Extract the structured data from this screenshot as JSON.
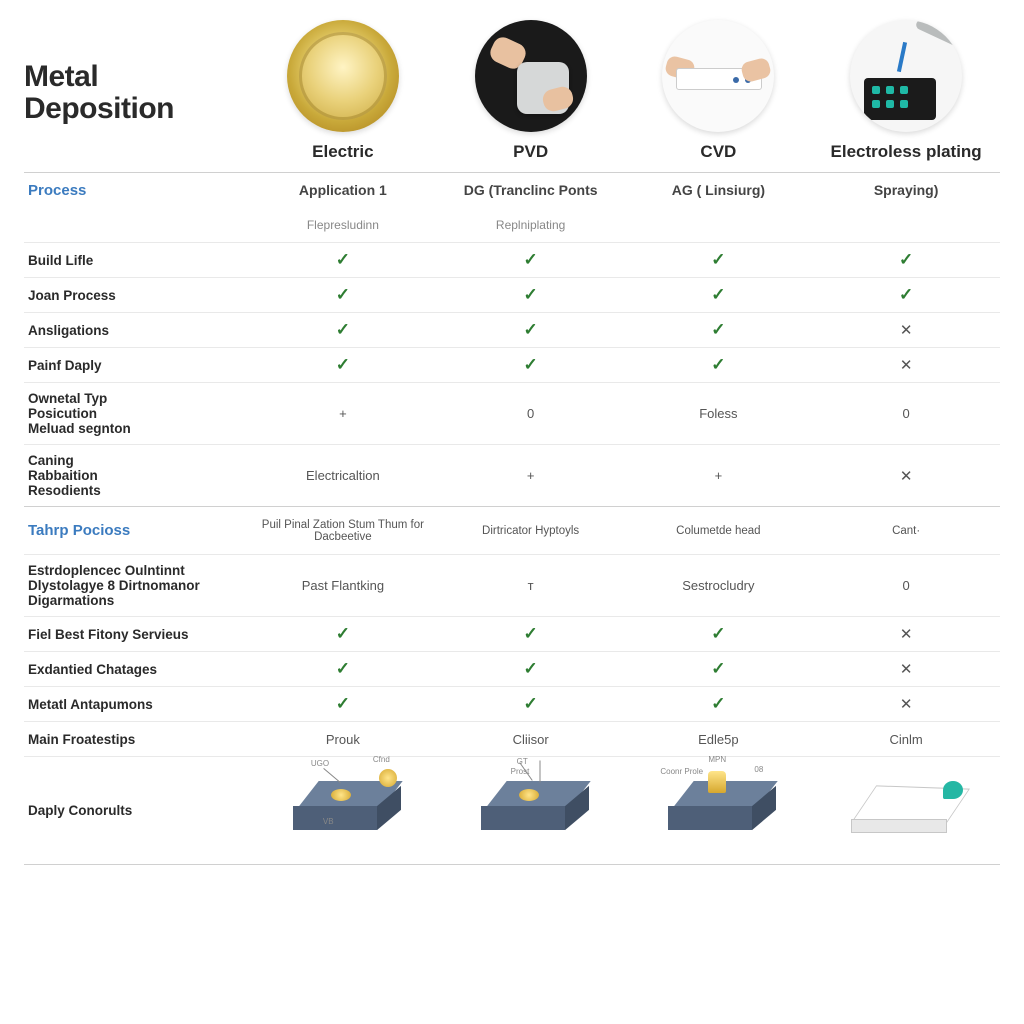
{
  "title_line1": "Metal",
  "title_line2": "Deposition",
  "methods": [
    {
      "name": "Electric",
      "app": "Application 1",
      "sub": "Flepresludinn"
    },
    {
      "name": "PVD",
      "app": "DG (Tranclinc Ponts",
      "sub": "Replniplating"
    },
    {
      "name": "CVD",
      "app": "AG ( Linsiurg)",
      "sub": ""
    },
    {
      "name": "Electroless plating",
      "app": "Spraying)",
      "sub": ""
    }
  ],
  "section1": "Process",
  "section2": "Tahrp Pocioss",
  "rows": [
    {
      "label": "Build Lifle",
      "cells": [
        "check",
        "check",
        "check",
        "check"
      ]
    },
    {
      "label": "Joan Process",
      "cells": [
        "check",
        "check",
        "check",
        "check"
      ]
    },
    {
      "label": "Ansligations",
      "cells": [
        "check",
        "check",
        "check",
        "cross"
      ]
    },
    {
      "label": "Painf Daply",
      "cells": [
        "check",
        "check",
        "check",
        "cross"
      ]
    }
  ],
  "tallrows": [
    {
      "label": "Ownetal Typ\nPosicution\nMeluad segnton",
      "cells": [
        "+",
        "0",
        "Foless",
        "0"
      ]
    },
    {
      "label": "Caning\nRabbaition\nResodients",
      "cells": [
        "Electricaltion",
        "+",
        "+",
        "cross"
      ]
    }
  ],
  "section2_row": {
    "cells": [
      "Puil Pinal Zation Stum Thum for Dacbeetive",
      "Dirtricator Hyptoyls",
      "Columetde head",
      "Cant·"
    ]
  },
  "rows2": [
    {
      "label": "Estrdoplencec Oulntinnt\nDlystolagye 8 Dirtnomanor\nDigarmations",
      "cells": [
        "Past Flantking",
        "т",
        "Sestrocludry",
        "0"
      ],
      "tall": true
    },
    {
      "label": "Fiel Best Fitony Servieus",
      "cells": [
        "check",
        "check",
        "check",
        "cross"
      ]
    },
    {
      "label": "Exdantied Chatages",
      "cells": [
        "check",
        "check",
        "check",
        "cross"
      ]
    },
    {
      "label": "Metatl Antapumons",
      "cells": [
        "check",
        "check",
        "check",
        "cross"
      ]
    },
    {
      "label": "Main Froatestips",
      "cells": [
        "Prouk",
        "Cliisor",
        "Edle5p",
        "Cinlm"
      ]
    }
  ],
  "diag_label": "Daply Conorults",
  "mini_labels": {
    "d1a": "UGO",
    "d1b": "Cfnd",
    "d1c": "VB",
    "d2a": "GT",
    "d2b": "Prost",
    "d3a": "MPN",
    "d3b": "Coonr Prole",
    "d3c": "08"
  },
  "colors": {
    "check": "#2e7d32",
    "section": "#3b7bbf",
    "border": "#e9e9e9"
  }
}
